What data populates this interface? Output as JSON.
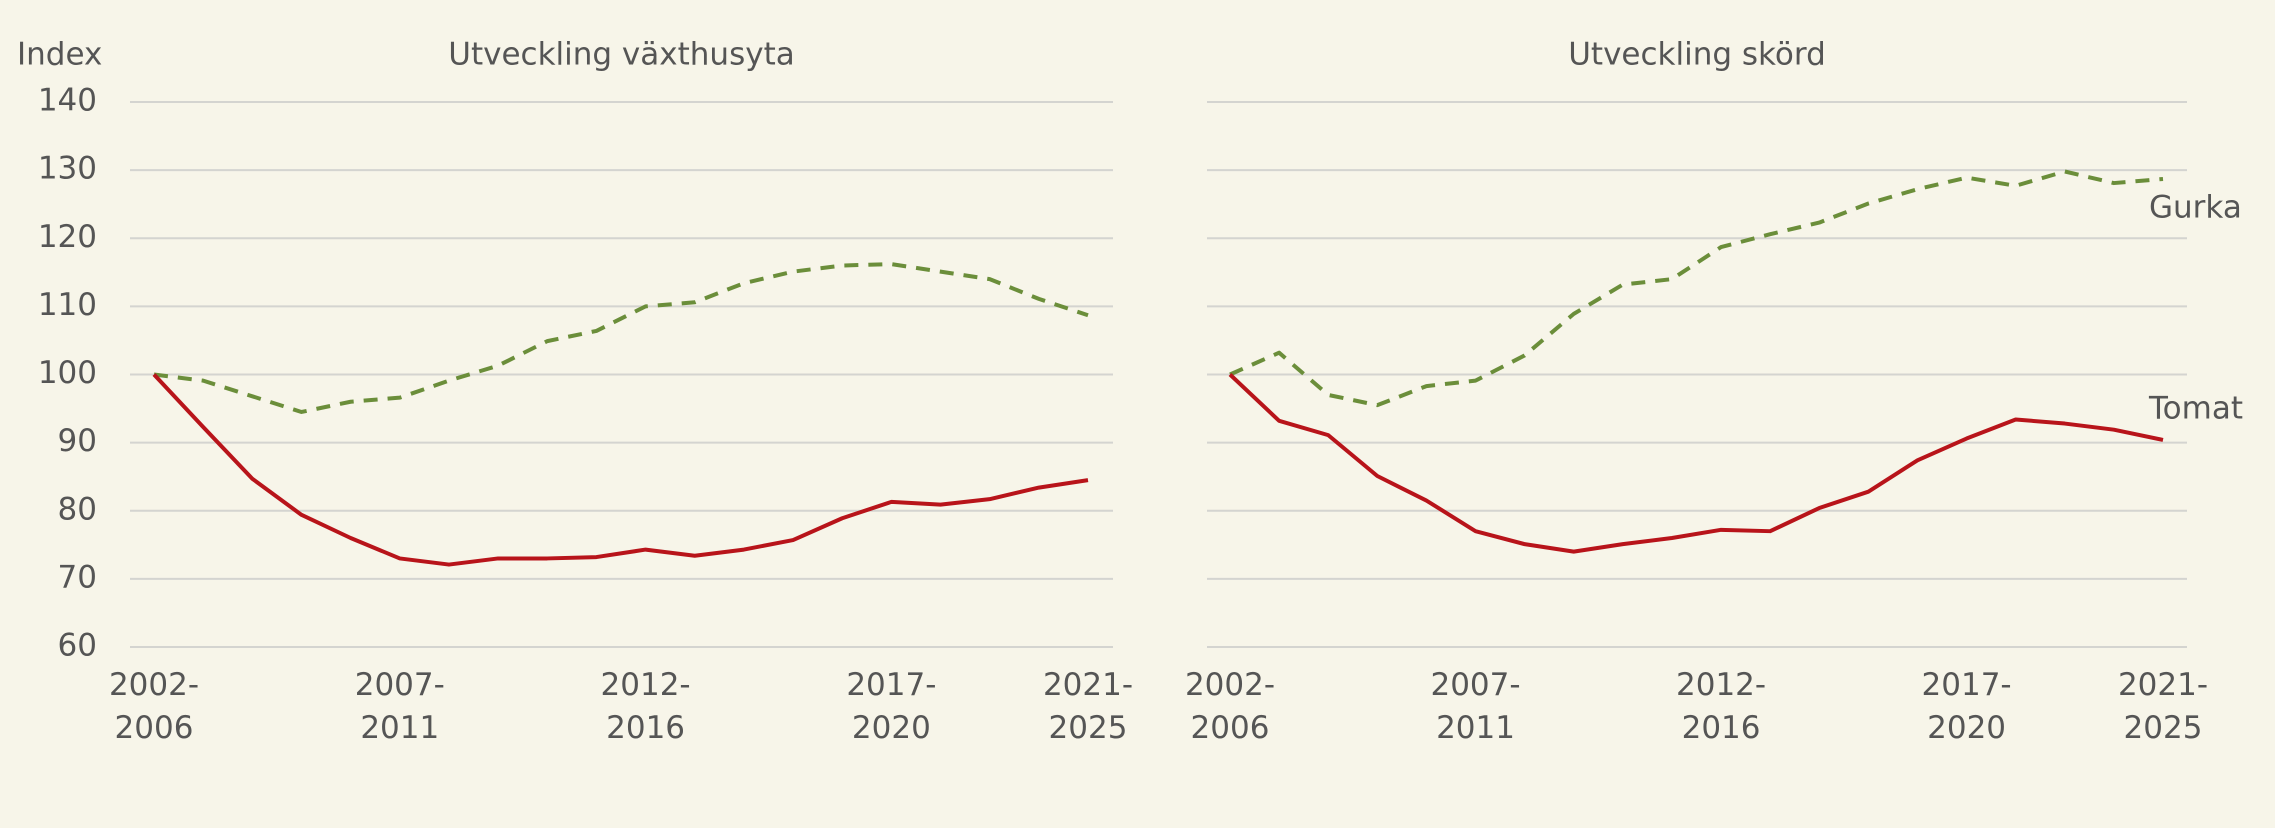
{
  "chart_data": [
    {
      "type": "line",
      "title": "Utveckling växthusyta",
      "y_label": "Index",
      "categories": [
        "2002-2006",
        null,
        null,
        null,
        null,
        "2007-2011",
        null,
        null,
        null,
        null,
        "2012-2016",
        null,
        null,
        null,
        null,
        "2017-2020",
        null,
        null,
        null,
        "2021-2025"
      ],
      "series": [
        {
          "color": "#6b8e3a",
          "line_style": "dashed",
          "values": [
            100,
            99.1,
            96.8,
            94.5,
            96,
            96.6,
            99.1,
            101.3,
            104.9,
            106.4,
            110,
            110.6,
            113.4,
            115.1,
            116,
            116.2,
            115.1,
            114,
            111.1,
            108.7
          ]
        },
        {
          "color": "#b8141a",
          "line_style": "solid",
          "values": [
            100,
            92.3,
            84.7,
            79.4,
            76,
            73,
            72.1,
            73,
            73,
            73.2,
            74.3,
            73.4,
            74.3,
            75.7,
            78.9,
            81.3,
            80.9,
            81.7,
            83.4,
            84.5
          ]
        }
      ],
      "ylim": [
        60,
        140
      ],
      "yticks": [
        60,
        70,
        80,
        90,
        100,
        110,
        120,
        130,
        140
      ],
      "ytick_labels": true,
      "grid": true
    },
    {
      "type": "line",
      "title": "Utveckling skörd",
      "categories": [
        "2002-2006",
        null,
        null,
        null,
        null,
        "2007-2011",
        null,
        null,
        null,
        null,
        "2012-2016",
        null,
        null,
        null,
        null,
        "2017-2020",
        null,
        null,
        null,
        "2021-2025"
      ],
      "series": [
        {
          "name": "Gurka",
          "color": "#6b8e3a",
          "line_style": "dashed",
          "values": [
            100,
            103.2,
            97,
            95.5,
            98.3,
            99.1,
            102.8,
            108.9,
            113.2,
            114,
            118.7,
            120.6,
            122.3,
            125.1,
            127.2,
            128.9,
            127.7,
            129.8,
            128.1,
            128.7
          ]
        },
        {
          "name": "Tomat",
          "color": "#b8141a",
          "line_style": "solid",
          "values": [
            100,
            93.2,
            91.1,
            85.1,
            81.5,
            77,
            75.1,
            74,
            75.1,
            76,
            77.2,
            77,
            80.4,
            82.8,
            87.4,
            90.6,
            93.4,
            92.8,
            91.9,
            90.4
          ]
        }
      ],
      "ylim": [
        60,
        140
      ],
      "yticks": [
        60,
        70,
        80,
        90,
        100,
        110,
        120,
        130,
        140
      ],
      "ytick_labels": false,
      "grid": true
    }
  ]
}
